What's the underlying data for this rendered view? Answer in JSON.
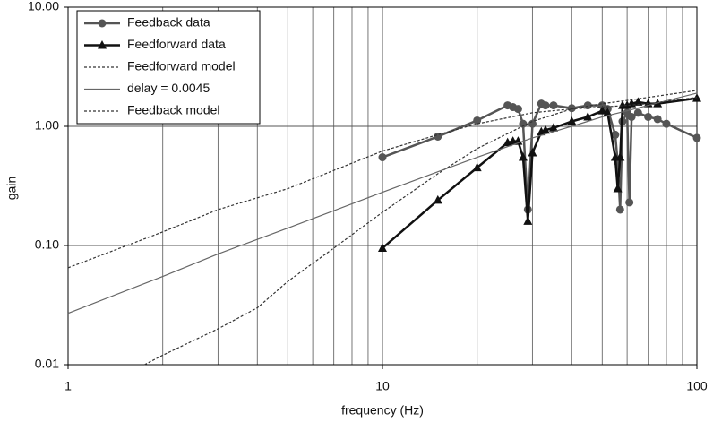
{
  "chart_data": {
    "type": "line",
    "x_label": "frequency (Hz)",
    "y_label": "gain",
    "log_x": true,
    "log_y": true,
    "grid": true,
    "legend": "upper left",
    "xlim": [
      1,
      100
    ],
    "ylim": [
      0.01,
      10
    ],
    "xticks": [
      1,
      10,
      100
    ],
    "xminor": [
      2,
      3,
      4,
      5,
      6,
      7,
      8,
      9,
      20,
      30,
      40,
      50,
      60,
      70,
      80,
      90
    ],
    "yticks": [
      {
        "value": 10,
        "label": "10.00"
      },
      {
        "value": 1,
        "label": "1.00"
      },
      {
        "value": 0.1,
        "label": "0.10"
      },
      {
        "value": 0.01,
        "label": "0.01"
      }
    ],
    "series": [
      {
        "name": "Feedback data",
        "color": "#555555",
        "marker": "circle",
        "dash": false,
        "width": 2.5,
        "x": [
          10,
          15,
          20,
          25,
          26,
          27,
          28,
          29,
          30,
          32,
          33,
          35,
          40,
          45,
          50,
          52,
          55,
          56,
          57,
          58,
          60,
          61,
          62,
          65,
          70,
          75,
          80,
          100
        ],
        "values": [
          0.55,
          0.82,
          1.12,
          1.5,
          1.45,
          1.4,
          1.05,
          0.2,
          1.05,
          1.55,
          1.5,
          1.5,
          1.42,
          1.5,
          1.5,
          1.4,
          0.85,
          0.5,
          0.2,
          1.1,
          1.3,
          0.23,
          1.2,
          1.3,
          1.2,
          1.15,
          1.05,
          0.8
        ]
      },
      {
        "name": "Feedforward data",
        "color": "#111111",
        "marker": "triangle",
        "dash": false,
        "width": 2.5,
        "x": [
          10,
          15,
          20,
          25,
          26,
          27,
          28,
          29,
          30,
          32,
          33,
          35,
          40,
          45,
          50,
          52,
          55,
          56,
          57,
          58,
          60,
          62,
          65,
          70,
          75,
          100
        ],
        "values": [
          0.095,
          0.24,
          0.45,
          0.73,
          0.75,
          0.75,
          0.55,
          0.16,
          0.6,
          0.9,
          0.93,
          0.97,
          1.1,
          1.2,
          1.35,
          1.3,
          0.55,
          0.3,
          0.55,
          1.5,
          1.5,
          1.55,
          1.6,
          1.55,
          1.55,
          1.72
        ]
      },
      {
        "name": "Feedforward model",
        "color": "#333333",
        "marker": null,
        "dash": true,
        "width": 1.2,
        "x": [
          1.75,
          2,
          3,
          4,
          5,
          7,
          10,
          15,
          20,
          30,
          40,
          50,
          60,
          70,
          100
        ],
        "values": [
          0.01,
          0.012,
          0.02,
          0.03,
          0.05,
          0.095,
          0.19,
          0.4,
          0.65,
          1.1,
          1.4,
          1.55,
          1.65,
          1.75,
          2.0
        ]
      },
      {
        "name": "delay = 0.0045",
        "color": "#666666",
        "marker": null,
        "dash": false,
        "width": 1.2,
        "x": [
          1,
          2,
          3,
          5,
          10,
          20,
          30,
          40,
          50,
          60,
          70,
          100
        ],
        "values": [
          0.027,
          0.055,
          0.085,
          0.14,
          0.28,
          0.55,
          0.8,
          1.0,
          1.2,
          1.35,
          1.5,
          1.9
        ]
      },
      {
        "name": "Feedback model",
        "color": "#333333",
        "marker": null,
        "dash": true,
        "width": 1.2,
        "x": [
          1,
          2,
          3,
          5,
          10,
          15,
          20,
          30,
          40,
          50,
          60,
          70,
          100
        ],
        "values": [
          0.065,
          0.13,
          0.2,
          0.3,
          0.62,
          0.85,
          1.05,
          1.3,
          1.4,
          1.45,
          1.5,
          1.55,
          1.75
        ]
      }
    ]
  }
}
